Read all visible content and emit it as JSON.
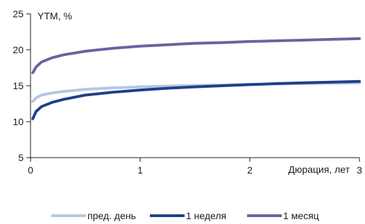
{
  "chart_data": {
    "type": "line",
    "ylabel": "YTM, %",
    "xlabel": "Дюрация, лет",
    "xlim": [
      0,
      3
    ],
    "ylim": [
      5,
      25
    ],
    "x_ticks": [
      "0",
      "1",
      "2",
      "3"
    ],
    "y_ticks": [
      "5",
      "10",
      "15",
      "20",
      "25"
    ],
    "grid": false,
    "legend_position": "bottom",
    "series": [
      {
        "name": "пред. день",
        "color": "#b3c7e0",
        "x": [
          0.02,
          0.05,
          0.1,
          0.2,
          0.3,
          0.5,
          0.75,
          1.0,
          1.25,
          1.5,
          1.75,
          2.0,
          2.25,
          2.5,
          2.75,
          3.0
        ],
        "y": [
          12.8,
          13.3,
          13.7,
          14.0,
          14.2,
          14.5,
          14.7,
          14.85,
          14.95,
          15.05,
          15.1,
          15.2,
          15.25,
          15.3,
          15.35,
          15.4
        ]
      },
      {
        "name": "1 неделя",
        "color": "#1f3f8a",
        "x": [
          0.02,
          0.05,
          0.1,
          0.2,
          0.3,
          0.5,
          0.75,
          1.0,
          1.25,
          1.5,
          1.75,
          2.0,
          2.25,
          2.5,
          2.75,
          3.0
        ],
        "y": [
          10.4,
          11.4,
          12.1,
          12.7,
          13.1,
          13.7,
          14.1,
          14.4,
          14.65,
          14.85,
          15.0,
          15.15,
          15.3,
          15.4,
          15.5,
          15.6
        ]
      },
      {
        "name": "1 месяц",
        "color": "#6b62a0",
        "x": [
          0.02,
          0.05,
          0.1,
          0.2,
          0.3,
          0.5,
          0.75,
          1.0,
          1.25,
          1.5,
          1.75,
          2.0,
          2.25,
          2.5,
          2.75,
          3.0
        ],
        "y": [
          16.8,
          17.6,
          18.3,
          18.9,
          19.3,
          19.8,
          20.2,
          20.5,
          20.7,
          20.9,
          21.0,
          21.15,
          21.25,
          21.35,
          21.45,
          21.55
        ]
      }
    ]
  }
}
